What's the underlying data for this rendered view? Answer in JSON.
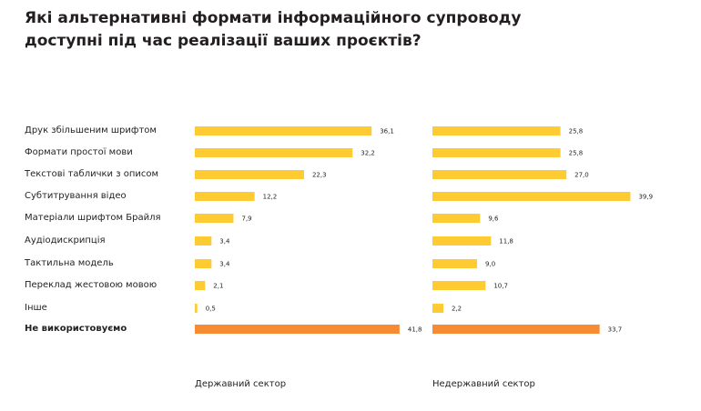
{
  "title_line1": "Які альтернативні формати інформаційного супроводу",
  "title_line2": "доступні під час реалізації ваших проєктів?",
  "colors": {
    "bar": "#fecb33",
    "bar_highlight": "#f78b33",
    "text": "#231f20"
  },
  "chart_data": [
    {
      "type": "bar",
      "orientation": "horizontal",
      "title": "Державний сектор",
      "categories": [
        "Друк збільшеним шрифтом",
        "Формати простої мови",
        "Текстові таблички з описом",
        "Субтитрування відео",
        "Матеріали шрифтом Брайля",
        "Аудіодискрипція",
        "Тактильна модель",
        "Переклад жестовою мовою",
        "Інше",
        "Не використовуємо"
      ],
      "values": [
        36.1,
        32.2,
        22.3,
        12.2,
        7.9,
        3.4,
        3.4,
        2.1,
        0.5,
        41.8
      ],
      "value_labels": [
        "36,1",
        "32,2",
        "22,3",
        "12,2",
        "7,9",
        "3,4",
        "3,4",
        "2,1",
        "0,5",
        "41,8"
      ],
      "highlight_index": 9,
      "grid": false
    },
    {
      "type": "bar",
      "orientation": "horizontal",
      "title": "Недержавний сектор",
      "categories": [
        "Друк збільшеним шрифтом",
        "Формати простої мови",
        "Текстові таблички з описом",
        "Субтитрування відео",
        "Матеріали шрифтом Брайля",
        "Аудіодискрипція",
        "Тактильна модель",
        "Переклад жестовою мовою",
        "Інше",
        "Не використовуємо"
      ],
      "values": [
        25.8,
        25.8,
        27.0,
        39.9,
        9.6,
        11.8,
        9.0,
        10.7,
        2.2,
        33.7
      ],
      "value_labels": [
        "25,8",
        "25,8",
        "27,0",
        "39,9",
        "9,6",
        "11,8",
        "9,0",
        "10,7",
        "2,2",
        "33,7"
      ],
      "highlight_index": 9,
      "grid": false
    }
  ]
}
